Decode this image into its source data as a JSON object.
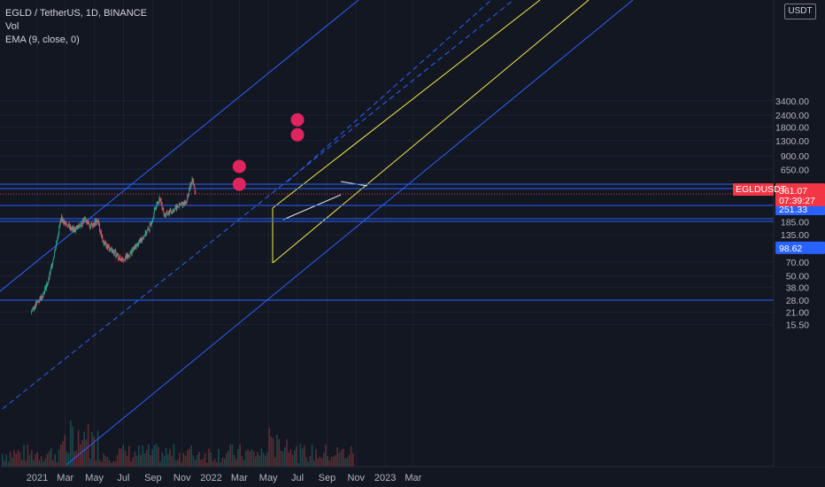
{
  "legend": {
    "title": "EGLD / TetherUS, 1D, BINANCE",
    "vol": "Vol",
    "ema": "EMA (9, close, 0)"
  },
  "axis_currency": "USDT",
  "colors": {
    "background": "#131722",
    "grid": "#1e2230",
    "channel_blue": "#2962ff",
    "channel_yellow": "#f5e94a",
    "marker": "#e0245e",
    "up": "#26a69a",
    "down": "#ef5350",
    "tag_blue": "#2962ff",
    "tag_red": "#f23645"
  },
  "chart_data": {
    "type": "candlestick",
    "symbol": "EGLDUSDT",
    "scale": "log",
    "x_ticks": [
      "2021",
      "Mar",
      "May",
      "Jul",
      "Sep",
      "Nov",
      "2022",
      "Mar",
      "May",
      "Jul",
      "Sep",
      "Nov",
      "2023",
      "Mar"
    ],
    "y_ticks": [
      3400,
      2400,
      1800,
      1300,
      900,
      650,
      185,
      135,
      70,
      50,
      38,
      28,
      21,
      15.5
    ],
    "price_levels": [
      385.38,
      376.55,
      331.59,
      300.53,
      251.33,
      98.62
    ],
    "last_price": {
      "label": "EGLDUSDT",
      "value": 361.07,
      "countdown": "07:39:27"
    },
    "price_path": [
      [
        "2020-12-20",
        22
      ],
      [
        "2021-01-10",
        30
      ],
      [
        "2021-01-25",
        45
      ],
      [
        "2021-02-10",
        110
      ],
      [
        "2021-02-20",
        200
      ],
      [
        "2021-03-05",
        170
      ],
      [
        "2021-03-20",
        150
      ],
      [
        "2021-04-05",
        175
      ],
      [
        "2021-04-10",
        210
      ],
      [
        "2021-04-20",
        165
      ],
      [
        "2021-05-08",
        190
      ],
      [
        "2021-05-20",
        110
      ],
      [
        "2021-06-05",
        95
      ],
      [
        "2021-06-25",
        75
      ],
      [
        "2021-07-10",
        80
      ],
      [
        "2021-08-01",
        110
      ],
      [
        "2021-08-25",
        160
      ],
      [
        "2021-09-05",
        250
      ],
      [
        "2021-09-15",
        330
      ],
      [
        "2021-09-25",
        215
      ],
      [
        "2021-10-10",
        240
      ],
      [
        "2021-10-25",
        270
      ],
      [
        "2021-11-10",
        300
      ],
      [
        "2021-11-22",
        520
      ],
      [
        "2021-11-30",
        361
      ]
    ],
    "markers": [
      {
        "date": "2022-03-01",
        "price": 700
      },
      {
        "date": "2022-03-01",
        "price": 455
      },
      {
        "date": "2022-07-01",
        "price": 2150
      },
      {
        "date": "2022-07-01",
        "price": 1500
      }
    ]
  }
}
